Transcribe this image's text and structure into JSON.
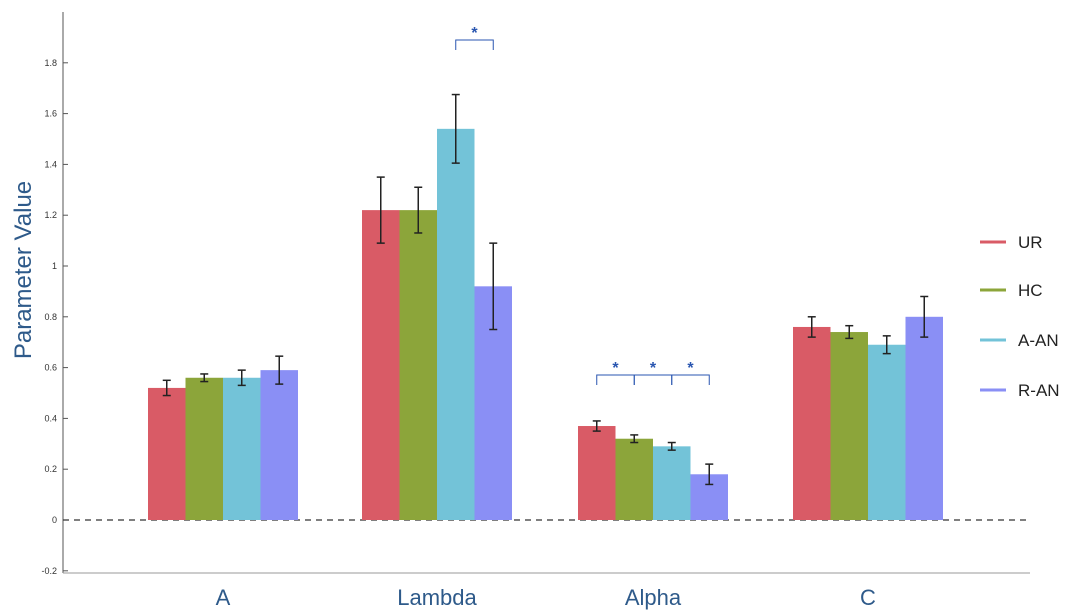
{
  "chart_data": {
    "type": "bar",
    "title": "",
    "xlabel": "",
    "ylabel": "Parameter Value",
    "ylim": [
      -0.2,
      1.85
    ],
    "yticks": [
      -0.2,
      0,
      0.2,
      0.4,
      0.6,
      0.8,
      1,
      1.2,
      1.4,
      1.6,
      1.8
    ],
    "ytick_labels": [
      "-0.2",
      "0",
      "0.2",
      "0.4",
      "0.6",
      "0.8",
      "1",
      "1.2",
      "1.4",
      "1.6",
      "1.8"
    ],
    "categories": [
      "A",
      "Lambda",
      "Alpha",
      "C"
    ],
    "series": [
      {
        "name": "UR",
        "color": "#d95b66",
        "values": [
          0.52,
          1.22,
          0.37,
          0.76
        ],
        "errors": [
          0.03,
          0.13,
          0.02,
          0.04
        ]
      },
      {
        "name": "HC",
        "color": "#8ca53a",
        "values": [
          0.56,
          1.22,
          0.32,
          0.74
        ],
        "errors": [
          0.015,
          0.09,
          0.015,
          0.025
        ]
      },
      {
        "name": "A-AN",
        "color": "#73c3d8",
        "values": [
          0.56,
          1.54,
          0.29,
          0.69
        ],
        "errors": [
          0.03,
          0.135,
          0.015,
          0.035
        ]
      },
      {
        "name": "R-AN",
        "color": "#8a8ff5",
        "values": [
          0.59,
          0.92,
          0.18,
          0.8
        ],
        "errors": [
          0.055,
          0.17,
          0.04,
          0.08
        ]
      }
    ],
    "baseline": 0,
    "baseline_style": "dashed",
    "legend_position": "right",
    "significance": [
      {
        "category": "Lambda",
        "between": [
          "A-AN",
          "R-AN"
        ],
        "label": "*"
      },
      {
        "category": "Alpha",
        "between": [
          "UR",
          "HC"
        ],
        "label": "*"
      },
      {
        "category": "Alpha",
        "between": [
          "HC",
          "A-AN"
        ],
        "label": "*"
      },
      {
        "category": "Alpha",
        "between": [
          "A-AN",
          "R-AN"
        ],
        "label": "*"
      }
    ],
    "colors": {
      "axis": "#555555",
      "label": "#2e5a8a",
      "significance": "#2a56b0"
    }
  }
}
